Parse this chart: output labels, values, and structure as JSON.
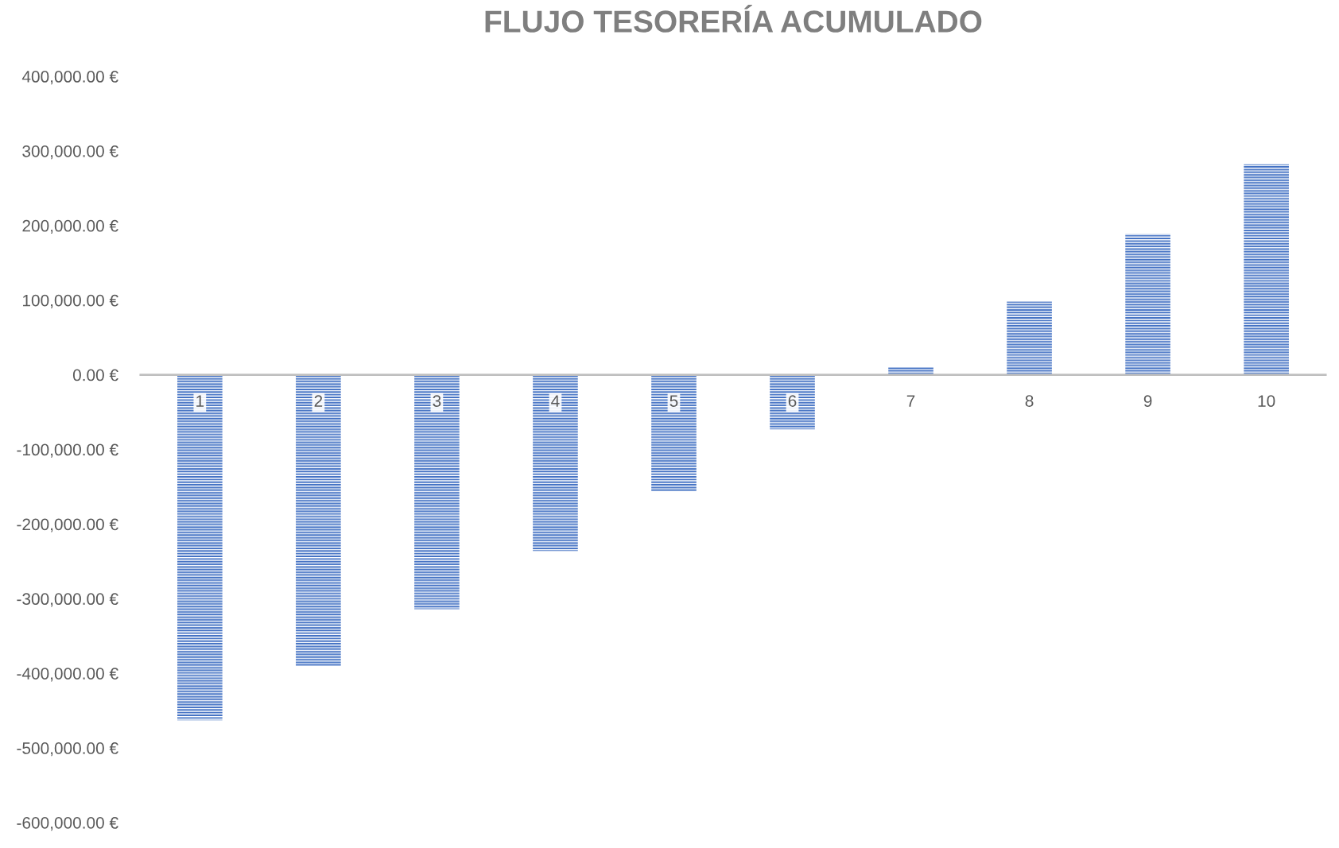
{
  "chart_data": {
    "type": "bar",
    "title": "FLUJO TESORERÍA ACUMULADO",
    "categories": [
      "1",
      "2",
      "3",
      "4",
      "5",
      "6",
      "7",
      "8",
      "9",
      "10"
    ],
    "series": [
      {
        "color": "#4472c4",
        "values": [
          -463000,
          -390000,
          -314000,
          -236000,
          -156000,
          -73000,
          10000,
          98000,
          189000,
          282000
        ]
      }
    ],
    "ylim": [
      -600000,
      400000
    ],
    "yticks": [
      {
        "value": -600000,
        "label": "-600,000.00 €"
      },
      {
        "value": -500000,
        "label": "-500,000.00 €"
      },
      {
        "value": -400000,
        "label": "-400,000.00 €"
      },
      {
        "value": -300000,
        "label": "-300,000.00 €"
      },
      {
        "value": -200000,
        "label": "-200,000.00 €"
      },
      {
        "value": -100000,
        "label": "-100,000.00 €"
      },
      {
        "value": 0,
        "label": "0.00 €"
      },
      {
        "value": 100000,
        "label": "100,000.00 €"
      },
      {
        "value": 200000,
        "label": "200,000.00 €"
      },
      {
        "value": 300000,
        "label": "300,000.00 €"
      },
      {
        "value": 400000,
        "label": "400,000.00 €"
      }
    ],
    "grid": false,
    "legend": false
  }
}
